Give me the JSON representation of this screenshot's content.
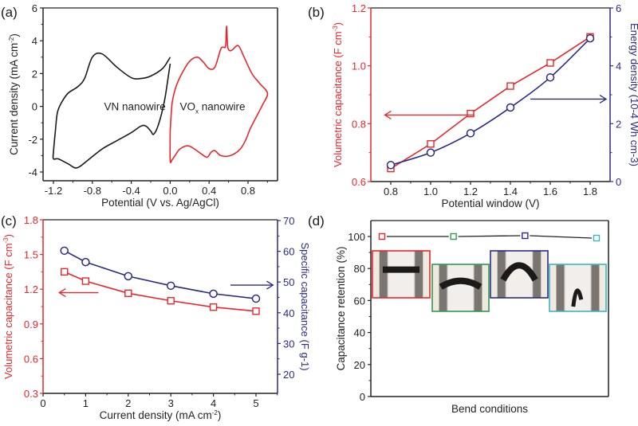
{
  "colors": {
    "red": "#e8262c",
    "blue": "#2b2a86",
    "black": "#1a1a1a",
    "green": "#2e9a52",
    "cyan": "#3cb6c4"
  },
  "chart_data": [
    {
      "panel": "(a)",
      "type": "line",
      "title": "",
      "xlabel": "Potential (V vs. Ag/AgCl)",
      "ylabel": "Current density (mA cm-2)",
      "ylabel_main": "Current density (mA cm",
      "ylabel_sup": "-2",
      "ylabel_end": ")",
      "xlim": [
        -1.31,
        1.11
      ],
      "ylim": [
        -4.5,
        6
      ],
      "xticks": [
        -1.2,
        -0.8,
        -0.4,
        0.0,
        0.4,
        0.8
      ],
      "xtick_labels": [
        "-1.2",
        "-0.8",
        "-0.4",
        "0.0",
        "0.4",
        "0.8"
      ],
      "yticks": [
        -4,
        -2,
        0,
        2,
        4,
        6
      ],
      "ytick_labels": [
        "-4",
        "-2",
        "0",
        "2",
        "4",
        "6"
      ],
      "annotations": [
        {
          "text": "VN nanowire",
          "x": -0.68,
          "y": 0.0
        },
        {
          "text": "VO",
          "sub": "x",
          "rest": " nanowire",
          "x": 0.05,
          "y": 0.0
        }
      ],
      "series": [
        {
          "name": "VN nanowire",
          "color_key": "black",
          "closed": false,
          "x": [
            0.0,
            -0.02,
            -0.08,
            -0.2,
            -0.3,
            -0.4,
            -0.55,
            -0.7,
            -0.8,
            -0.88,
            -0.95,
            -1.05,
            -1.12,
            -1.16,
            -1.18,
            -1.2,
            -1.2,
            -1.15,
            -1.05,
            -0.96,
            -0.85,
            -0.7,
            -0.55,
            -0.4,
            -0.3,
            -0.25,
            -0.2,
            -0.17,
            -0.12,
            -0.06,
            -0.02,
            0.0
          ],
          "y": [
            3.0,
            2.8,
            2.3,
            1.85,
            1.7,
            1.75,
            2.4,
            3.2,
            3.0,
            1.7,
            1.2,
            0.8,
            0.2,
            -0.4,
            -1.5,
            -2.8,
            -3.2,
            -3.2,
            -3.5,
            -3.75,
            -3.3,
            -2.6,
            -2.1,
            -1.6,
            -1.2,
            -1.2,
            -1.5,
            -1.7,
            -1.1,
            0.3,
            1.8,
            2.6
          ]
        },
        {
          "name": "VOx nanowire",
          "color_key": "red",
          "closed": true,
          "x": [
            0.0,
            0.02,
            0.06,
            0.12,
            0.2,
            0.28,
            0.34,
            0.4,
            0.46,
            0.52,
            0.55,
            0.57,
            0.58,
            0.59,
            0.61,
            0.64,
            0.7,
            0.76,
            0.84,
            0.92,
            1.0,
            0.95,
            0.88,
            0.82,
            0.78,
            0.72,
            0.62,
            0.52,
            0.46,
            0.42,
            0.38,
            0.32,
            0.25,
            0.18,
            0.1,
            0.05,
            0.02,
            0.0,
            0.0
          ],
          "y": [
            -1.5,
            0.2,
            1.2,
            2.0,
            2.75,
            3.0,
            2.7,
            2.3,
            2.4,
            3.5,
            3.6,
            3.7,
            4.9,
            3.7,
            3.4,
            3.45,
            3.7,
            3.0,
            2.0,
            1.4,
            0.8,
            0.1,
            -0.7,
            -1.4,
            -2.0,
            -2.6,
            -3.0,
            -3.0,
            -2.7,
            -2.8,
            -3.1,
            -2.9,
            -2.6,
            -2.4,
            -2.6,
            -3.0,
            -3.25,
            -3.3,
            -1.5
          ]
        }
      ]
    },
    {
      "panel": "(b)",
      "type": "line",
      "xlabel": "Potential window (V)",
      "ylabel_left": "Volumetric capacitance (F cm-3)",
      "ylabel_left_main": "Volumetric capacitance (F cm",
      "ylabel_left_sup": "-3",
      "ylabel_left_end": ")",
      "ylabel_right": "Energy density (10-4 Wh cm-3)",
      "xlim": [
        0.7,
        1.9
      ],
      "ylim_left": [
        0.6,
        1.2
      ],
      "ylim_right": [
        0,
        6
      ],
      "xticks": [
        0.8,
        1.0,
        1.2,
        1.4,
        1.6,
        1.8
      ],
      "xtick_labels": [
        "0.8",
        "1.0",
        "1.2",
        "1.4",
        "1.6",
        "1.8"
      ],
      "yticks_left": [
        0.6,
        0.8,
        1.0,
        1.2
      ],
      "ytick_labels_left": [
        "0.6",
        "0.8",
        "1.0",
        "1.2"
      ],
      "yticks_right": [
        0,
        2,
        4,
        6
      ],
      "ytick_labels_right": [
        "0",
        "2",
        "4",
        "6"
      ],
      "series": [
        {
          "name": "Volumetric capacitance",
          "axis": "left",
          "marker": "square",
          "color_key": "red",
          "x": [
            0.8,
            1.0,
            1.2,
            1.4,
            1.6,
            1.8
          ],
          "values": [
            0.645,
            0.73,
            0.835,
            0.93,
            1.01,
            1.1
          ]
        },
        {
          "name": "Energy density",
          "axis": "right",
          "marker": "circle",
          "color_key": "blue",
          "smooth": true,
          "x": [
            0.8,
            1.0,
            1.2,
            1.4,
            1.6,
            1.8
          ],
          "values": [
            0.57,
            1.0,
            1.67,
            2.56,
            3.6,
            4.95
          ]
        }
      ],
      "arrows": [
        {
          "direction": "left",
          "color_key": "red",
          "x_from": 1.22,
          "x_to": 0.77,
          "y_left": 0.83
        },
        {
          "direction": "right",
          "color_key": "blue",
          "x_from": 1.5,
          "x_to": 1.88,
          "y_right": 2.85
        }
      ]
    },
    {
      "panel": "(c)",
      "type": "line",
      "xlabel": "Current density (mA cm-2)",
      "xlabel_main": "Current density (mA cm",
      "xlabel_sup": "-2",
      "xlabel_end": ")",
      "ylabel_left": "Volumetric capacitance (F cm-3)",
      "ylabel_left_main": "Volumetric capacitance (F cm",
      "ylabel_left_sup": "-3",
      "ylabel_left_end": ")",
      "ylabel_right": "Specific capacitance (F g-1)",
      "xlim": [
        0,
        5.5
      ],
      "ylim_left": [
        0.3,
        1.8
      ],
      "ylim_right": [
        15.5,
        70
      ],
      "xticks": [
        0,
        1,
        2,
        3,
        4,
        5
      ],
      "xtick_labels": [
        "0",
        "1",
        "2",
        "3",
        "4",
        "5"
      ],
      "yticks_left": [
        0.3,
        0.6,
        0.9,
        1.2,
        1.5,
        1.8
      ],
      "ytick_labels_left": [
        "0.3",
        "0.6",
        "0.9",
        "1.2",
        "1.5",
        "1.8"
      ],
      "yticks_right": [
        20,
        30,
        40,
        50,
        60,
        70
      ],
      "ytick_labels_right": [
        "20",
        "30",
        "40",
        "50",
        "60",
        "70"
      ],
      "series": [
        {
          "name": "Volumetric capacitance",
          "axis": "left",
          "marker": "square",
          "color_key": "red",
          "x": [
            0.5,
            1,
            2,
            3,
            4,
            5
          ],
          "values": [
            1.35,
            1.27,
            1.165,
            1.1,
            1.045,
            1.01
          ]
        },
        {
          "name": "Specific capacitance",
          "axis": "right",
          "marker": "circle",
          "color_key": "blue",
          "x": [
            0.5,
            1,
            2,
            3,
            4,
            5
          ],
          "values": [
            60.2,
            56.5,
            51.9,
            48.8,
            46.2,
            44.6
          ]
        }
      ],
      "arrows": [
        {
          "direction": "left",
          "color_key": "red",
          "x_from": 1.3,
          "x_to": 0.38,
          "y_left": 1.17
        },
        {
          "direction": "right",
          "color_key": "blue",
          "x_from": 4.4,
          "x_to": 5.4,
          "y_right": 49.0
        }
      ]
    },
    {
      "panel": "(d)",
      "type": "line",
      "xlabel": "Bend conditions",
      "ylabel": "Capacitance retention (%)",
      "ylim": [
        0,
        110
      ],
      "yticks": [
        0,
        20,
        40,
        60,
        80,
        100
      ],
      "ytick_labels": [
        "0",
        "20",
        "40",
        "60",
        "80",
        "100"
      ],
      "points": [
        {
          "condition": "flat",
          "value": 100,
          "color_key": "red"
        },
        {
          "condition": "slight bend",
          "value": 100,
          "color_key": "green"
        },
        {
          "condition": "bend",
          "value": 100.5,
          "color_key": "blue"
        },
        {
          "condition": "folded",
          "value": 99,
          "color_key": "cyan"
        }
      ],
      "insets": [
        {
          "name": "flat-photo",
          "color_key": "red",
          "shape": "flat"
        },
        {
          "name": "slight-bend-photo",
          "color_key": "green",
          "shape": "arc"
        },
        {
          "name": "bend-photo",
          "color_key": "blue",
          "shape": "peak"
        },
        {
          "name": "fold-photo",
          "color_key": "cyan",
          "shape": "fold"
        }
      ]
    }
  ],
  "panel_labels": [
    "(a)",
    "(b)",
    "(c)",
    "(d)"
  ]
}
